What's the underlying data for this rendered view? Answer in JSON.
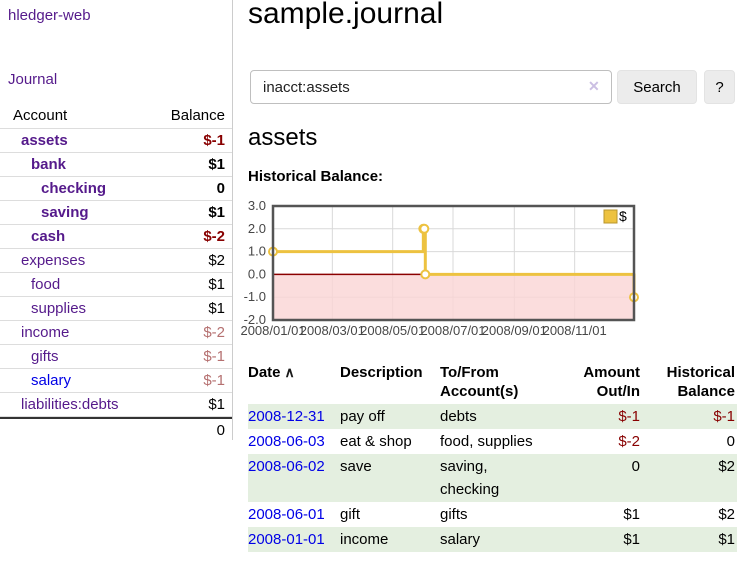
{
  "colors": {
    "link_purple": "#551a8b",
    "link_blue": "#0000e6",
    "negative_strong": "#880000",
    "negative_soft": "#b57070",
    "row_stripe_green": "#e4efe0",
    "chart_line_gold": "#edc240",
    "chart_negative_bg": "#fad5d5",
    "chart_zero_line": "#8b0000",
    "chart_border": "#545454",
    "chart_grid": "#d9d9d9"
  },
  "brand": {
    "title": "hledger-web"
  },
  "nav": {
    "journal": "Journal"
  },
  "sidebar": {
    "headers": {
      "account": "Account",
      "balance": "Balance"
    },
    "rows": [
      {
        "account": "assets",
        "balance": "$-1"
      },
      {
        "account": "bank",
        "balance": "$1"
      },
      {
        "account": "checking",
        "balance": "0"
      },
      {
        "account": "saving",
        "balance": "$1"
      },
      {
        "account": "cash",
        "balance": "$-2"
      },
      {
        "account": "expenses",
        "balance": "$2"
      },
      {
        "account": "food",
        "balance": "$1"
      },
      {
        "account": "supplies",
        "balance": "$1"
      },
      {
        "account": "income",
        "balance": "$-2"
      },
      {
        "account": "gifts",
        "balance": "$-1"
      },
      {
        "account": "salary",
        "balance": "$-1"
      },
      {
        "account": "liabilities:debts",
        "balance": "$1"
      }
    ],
    "total": "0"
  },
  "main": {
    "title": "sample.journal",
    "search": {
      "value": "inacct:assets",
      "clear_icon": "✕",
      "search_button": "Search",
      "help_button": "?"
    },
    "account_heading": "assets",
    "chart_label": "Historical Balance:"
  },
  "chart_data": {
    "type": "line",
    "title": "Historical Balance:",
    "step": true,
    "series": [
      {
        "name": "$",
        "color": "#edc240",
        "points": [
          [
            "2008-01-01",
            1
          ],
          [
            "2008-06-01",
            2
          ],
          [
            "2008-06-02",
            2
          ],
          [
            "2008-06-03",
            0
          ],
          [
            "2008-12-31",
            -1
          ]
        ]
      }
    ],
    "xrange": [
      "2008-01-01",
      "2008-12-31"
    ],
    "ylim": [
      -2,
      3
    ],
    "yticks": [
      3.0,
      2.0,
      1.0,
      0.0,
      -1.0,
      -2.0
    ],
    "xticks": [
      "2008/01/01",
      "2008/03/01",
      "2008/05/01",
      "2008/07/01",
      "2008/09/01",
      "2008/11/01"
    ],
    "legend_position": "top-right",
    "grid": true
  },
  "register": {
    "headers": {
      "date": "Date",
      "sort_icon": "∧",
      "description": "Description",
      "accounts": "To/From Account(s)",
      "amount": "Amount Out/In",
      "balance": "Historical Balance"
    },
    "rows": [
      {
        "date": "2008-12-31",
        "description": "pay off",
        "accounts": "debts",
        "amount": "$-1",
        "balance": "$-1"
      },
      {
        "date": "2008-06-03",
        "description": "eat & shop",
        "accounts": "food, supplies",
        "amount": "$-2",
        "balance": "0"
      },
      {
        "date": "2008-06-02",
        "description": "save",
        "accounts": "saving, checking",
        "amount": "0",
        "balance": "$2"
      },
      {
        "date": "2008-06-01",
        "description": "gift",
        "accounts": "gifts",
        "amount": "$1",
        "balance": "$2"
      },
      {
        "date": "2008-01-01",
        "description": "income",
        "accounts": "salary",
        "amount": "$1",
        "balance": "$1"
      }
    ]
  }
}
